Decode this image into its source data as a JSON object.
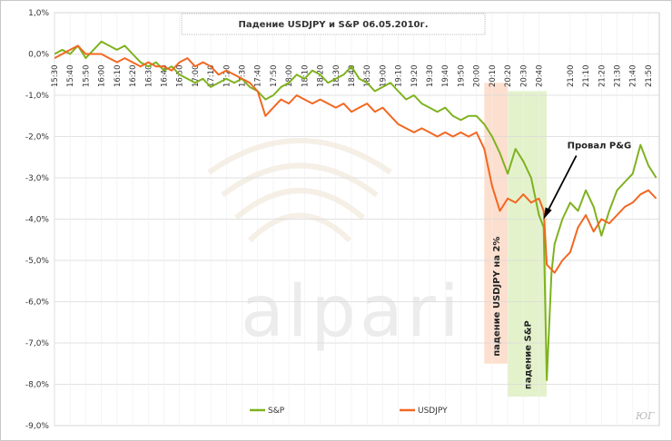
{
  "chart_data": {
    "type": "line",
    "title": "Падение USDJPY и S&P 06.05.2010г.",
    "ylim": [
      -9,
      1
    ],
    "yticks": [
      "1,0%",
      "0,0%",
      "-1,0%",
      "-2,0%",
      "-3,0%",
      "-4,0%",
      "-5,0%",
      "-6,0%",
      "-7,0%",
      "-8,0%",
      "-9,0%"
    ],
    "xticks": [
      "15:30",
      "15:40",
      "15:50",
      "16:00",
      "16:10",
      "16:20",
      "16:30",
      "16:40",
      "16:50",
      "17:00",
      "17:10",
      "17:20",
      "17:30",
      "17:40",
      "17:50",
      "18:00",
      "18:10",
      "18:20",
      "18:30",
      "18:40",
      "18:50",
      "19:00",
      "19:10",
      "19:20",
      "19:30",
      "19:40",
      "19:50",
      "20:00",
      "20:10",
      "20:20",
      "20:30",
      "20:40",
      "21:00",
      "21:10",
      "21:20",
      "21:30",
      "21:40",
      "21:50"
    ],
    "grid": true,
    "legend_position": "bottom",
    "series": [
      {
        "name": "S&P",
        "color": "#7fb21f",
        "points": [
          [
            "15:30",
            0.0
          ],
          [
            "15:35",
            0.1
          ],
          [
            "15:40",
            0.0
          ],
          [
            "15:45",
            0.2
          ],
          [
            "15:50",
            -0.1
          ],
          [
            "15:55",
            0.1
          ],
          [
            "16:00",
            0.3
          ],
          [
            "16:05",
            0.2
          ],
          [
            "16:10",
            0.1
          ],
          [
            "16:15",
            0.2
          ],
          [
            "16:20",
            0.0
          ],
          [
            "16:25",
            -0.2
          ],
          [
            "16:30",
            -0.3
          ],
          [
            "16:35",
            -0.2
          ],
          [
            "16:40",
            -0.4
          ],
          [
            "16:45",
            -0.3
          ],
          [
            "16:50",
            -0.5
          ],
          [
            "16:55",
            -0.6
          ],
          [
            "17:00",
            -0.7
          ],
          [
            "17:05",
            -0.6
          ],
          [
            "17:10",
            -0.8
          ],
          [
            "17:15",
            -0.7
          ],
          [
            "17:20",
            -0.6
          ],
          [
            "17:25",
            -0.7
          ],
          [
            "17:30",
            -0.6
          ],
          [
            "17:35",
            -0.8
          ],
          [
            "17:40",
            -0.9
          ],
          [
            "17:45",
            -1.1
          ],
          [
            "17:50",
            -1.0
          ],
          [
            "17:55",
            -0.8
          ],
          [
            "18:00",
            -0.7
          ],
          [
            "18:05",
            -0.5
          ],
          [
            "18:10",
            -0.6
          ],
          [
            "18:15",
            -0.4
          ],
          [
            "18:20",
            -0.5
          ],
          [
            "18:25",
            -0.7
          ],
          [
            "18:30",
            -0.6
          ],
          [
            "18:35",
            -0.5
          ],
          [
            "18:40",
            -0.3
          ],
          [
            "18:45",
            -0.6
          ],
          [
            "18:50",
            -0.7
          ],
          [
            "18:55",
            -0.9
          ],
          [
            "19:00",
            -0.8
          ],
          [
            "19:05",
            -0.7
          ],
          [
            "19:10",
            -0.9
          ],
          [
            "19:15",
            -1.1
          ],
          [
            "19:20",
            -1.0
          ],
          [
            "19:25",
            -1.2
          ],
          [
            "19:30",
            -1.3
          ],
          [
            "19:35",
            -1.4
          ],
          [
            "19:40",
            -1.3
          ],
          [
            "19:45",
            -1.5
          ],
          [
            "19:50",
            -1.6
          ],
          [
            "19:55",
            -1.5
          ],
          [
            "20:00",
            -1.5
          ],
          [
            "20:05",
            -1.7
          ],
          [
            "20:10",
            -2.0
          ],
          [
            "20:15",
            -2.4
          ],
          [
            "20:20",
            -2.9
          ],
          [
            "20:25",
            -2.3
          ],
          [
            "20:30",
            -2.6
          ],
          [
            "20:35",
            -3.0
          ],
          [
            "20:40",
            -3.9
          ],
          [
            "20:43",
            -4.2
          ],
          [
            "20:45",
            -7.9
          ],
          [
            "20:48",
            -5.3
          ],
          [
            "20:50",
            -4.6
          ],
          [
            "20:55",
            -4.0
          ],
          [
            "21:00",
            -3.6
          ],
          [
            "21:05",
            -3.8
          ],
          [
            "21:10",
            -3.3
          ],
          [
            "21:15",
            -3.7
          ],
          [
            "21:20",
            -4.4
          ],
          [
            "21:25",
            -3.8
          ],
          [
            "21:30",
            -3.3
          ],
          [
            "21:35",
            -3.1
          ],
          [
            "21:40",
            -2.9
          ],
          [
            "21:45",
            -2.2
          ],
          [
            "21:50",
            -2.7
          ],
          [
            "21:55",
            -3.0
          ]
        ]
      },
      {
        "name": "USDJPY",
        "color": "#f26722",
        "points": [
          [
            "15:30",
            -0.1
          ],
          [
            "15:35",
            0.0
          ],
          [
            "15:40",
            0.1
          ],
          [
            "15:45",
            0.2
          ],
          [
            "15:50",
            0.0
          ],
          [
            "15:55",
            0.0
          ],
          [
            "16:00",
            0.0
          ],
          [
            "16:05",
            -0.1
          ],
          [
            "16:10",
            -0.2
          ],
          [
            "16:15",
            -0.1
          ],
          [
            "16:20",
            -0.2
          ],
          [
            "16:25",
            -0.3
          ],
          [
            "16:30",
            -0.2
          ],
          [
            "16:35",
            -0.3
          ],
          [
            "16:40",
            -0.3
          ],
          [
            "16:45",
            -0.4
          ],
          [
            "16:50",
            -0.2
          ],
          [
            "16:55",
            -0.1
          ],
          [
            "17:00",
            -0.3
          ],
          [
            "17:05",
            -0.2
          ],
          [
            "17:10",
            -0.3
          ],
          [
            "17:15",
            -0.5
          ],
          [
            "17:20",
            -0.4
          ],
          [
            "17:25",
            -0.5
          ],
          [
            "17:30",
            -0.6
          ],
          [
            "17:35",
            -0.7
          ],
          [
            "17:40",
            -0.9
          ],
          [
            "17:45",
            -1.5
          ],
          [
            "17:50",
            -1.3
          ],
          [
            "17:55",
            -1.1
          ],
          [
            "18:00",
            -1.2
          ],
          [
            "18:05",
            -1.0
          ],
          [
            "18:10",
            -1.1
          ],
          [
            "18:15",
            -1.2
          ],
          [
            "18:20",
            -1.1
          ],
          [
            "18:25",
            -1.2
          ],
          [
            "18:30",
            -1.3
          ],
          [
            "18:35",
            -1.2
          ],
          [
            "18:40",
            -1.4
          ],
          [
            "18:45",
            -1.3
          ],
          [
            "18:50",
            -1.2
          ],
          [
            "18:55",
            -1.4
          ],
          [
            "19:00",
            -1.3
          ],
          [
            "19:05",
            -1.5
          ],
          [
            "19:10",
            -1.7
          ],
          [
            "19:15",
            -1.8
          ],
          [
            "19:20",
            -1.9
          ],
          [
            "19:25",
            -1.8
          ],
          [
            "19:30",
            -1.9
          ],
          [
            "19:35",
            -2.0
          ],
          [
            "19:40",
            -1.9
          ],
          [
            "19:45",
            -2.0
          ],
          [
            "19:50",
            -1.9
          ],
          [
            "19:55",
            -2.0
          ],
          [
            "20:00",
            -1.9
          ],
          [
            "20:05",
            -2.3
          ],
          [
            "20:10",
            -3.2
          ],
          [
            "20:15",
            -3.8
          ],
          [
            "20:20",
            -3.5
          ],
          [
            "20:25",
            -3.6
          ],
          [
            "20:30",
            -3.4
          ],
          [
            "20:35",
            -3.6
          ],
          [
            "20:40",
            -3.5
          ],
          [
            "20:43",
            -3.8
          ],
          [
            "20:45",
            -5.1
          ],
          [
            "20:50",
            -5.3
          ],
          [
            "20:55",
            -5.0
          ],
          [
            "21:00",
            -4.8
          ],
          [
            "21:05",
            -4.2
          ],
          [
            "21:10",
            -3.9
          ],
          [
            "21:15",
            -4.3
          ],
          [
            "21:20",
            -4.0
          ],
          [
            "21:25",
            -4.1
          ],
          [
            "21:30",
            -3.9
          ],
          [
            "21:35",
            -3.7
          ],
          [
            "21:40",
            -3.6
          ],
          [
            "21:45",
            -3.4
          ],
          [
            "21:50",
            -3.3
          ],
          [
            "21:55",
            -3.5
          ]
        ]
      }
    ],
    "highlights": [
      {
        "label": "падение USDJPY на 2%",
        "from": "20:05",
        "to": "20:20",
        "color": "#fbd9c7"
      },
      {
        "label": "падение S&P",
        "from": "20:20",
        "to": "20:45",
        "color": "#dff0c3"
      }
    ],
    "annotations": [
      {
        "label": "Провал P&G",
        "at": "20:43",
        "value": -4.0
      }
    ]
  },
  "legend": {
    "sp_label": "S&P",
    "usdjpy_label": "USDJPY"
  },
  "watermark_text": "alpari",
  "signature": "ЮГ"
}
